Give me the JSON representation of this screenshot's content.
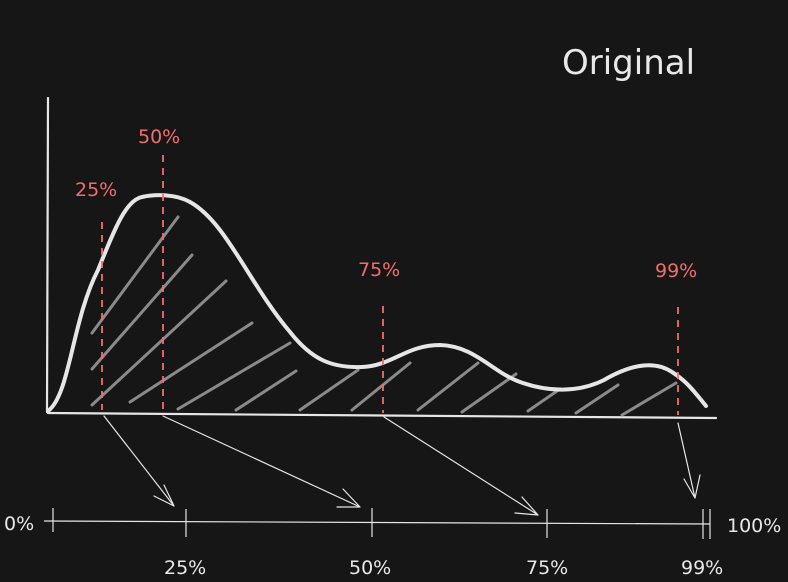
{
  "title": "Original",
  "percentile_markers": [
    {
      "label": "25%"
    },
    {
      "label": "50%"
    },
    {
      "label": "75%"
    },
    {
      "label": "99%"
    }
  ],
  "scale": {
    "start_label": "0%",
    "end_label": "100%",
    "tick_labels": [
      "25%",
      "50%",
      "75%",
      "99%"
    ]
  },
  "colors": {
    "background": "#161616",
    "foreground": "#e6e6e6",
    "marker": "#f26d6d",
    "hatch": "#8a8a8a"
  }
}
